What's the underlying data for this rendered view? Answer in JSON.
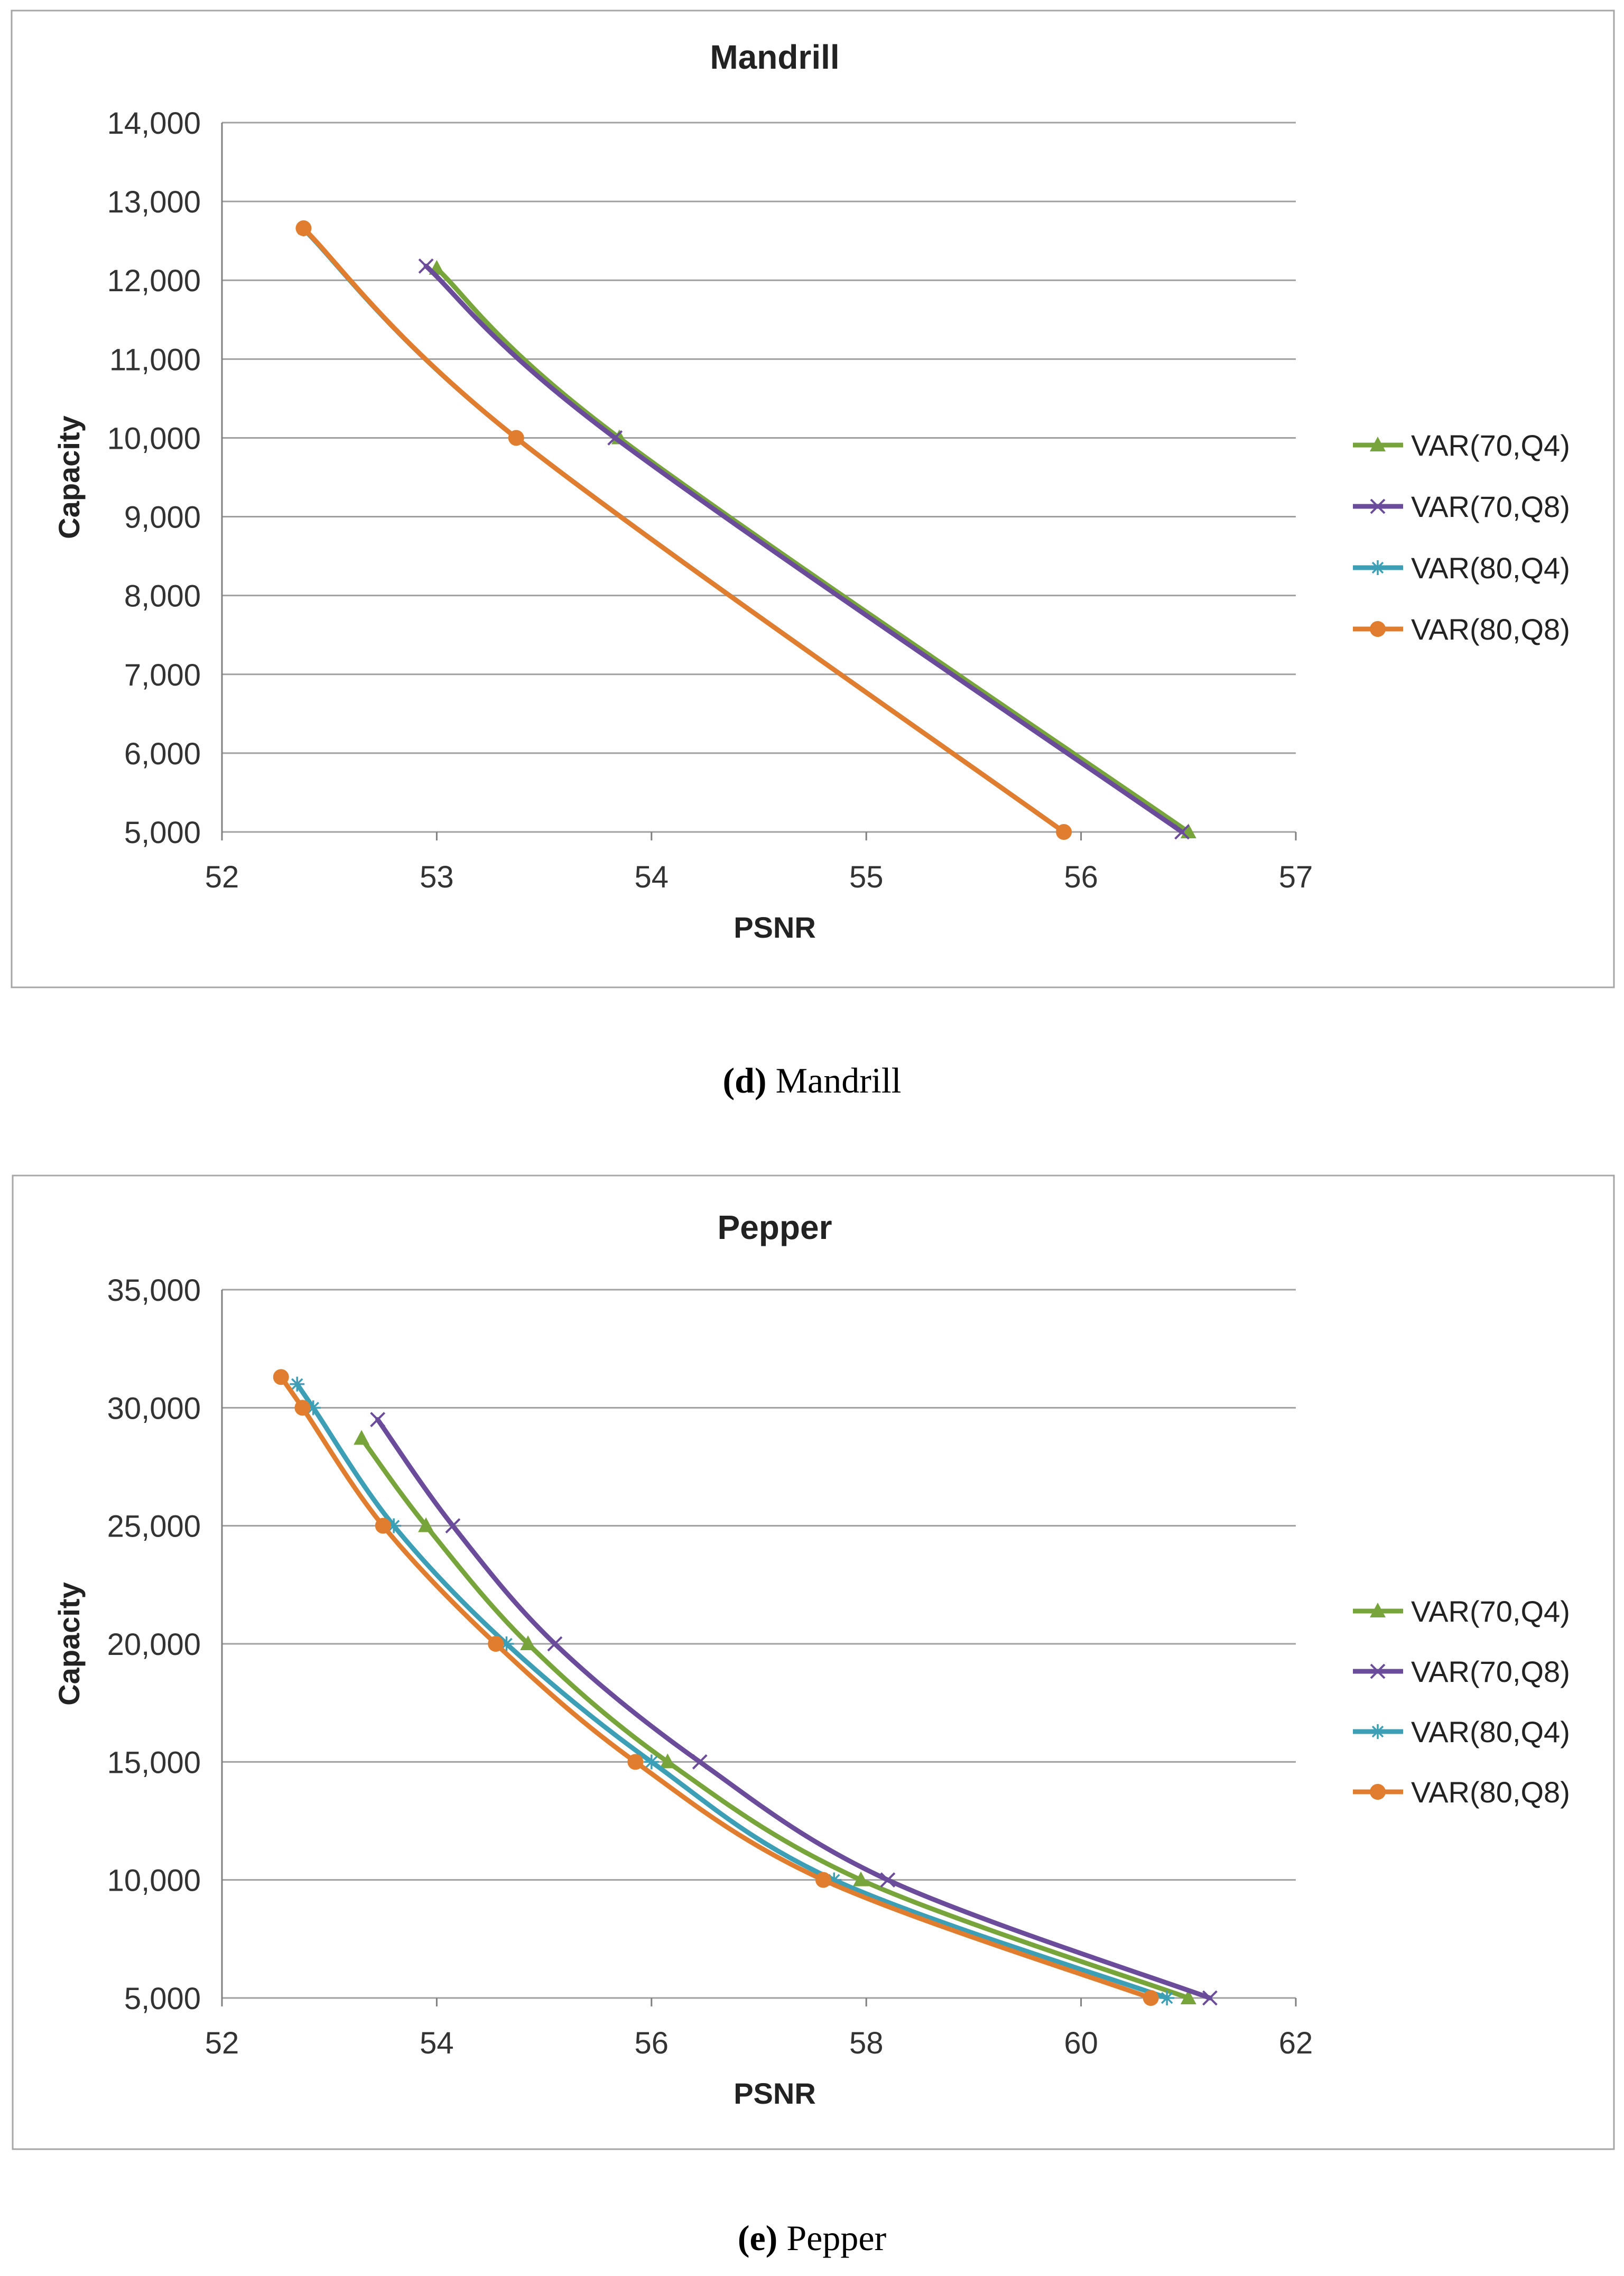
{
  "colors": {
    "VAR(70,Q4)": "#77a53b",
    "VAR(70,Q8)": "#6a4c9a",
    "VAR(80,Q4)": "#3d9fb5",
    "VAR(80,Q8)": "#e07d2e"
  },
  "chart_data": [
    {
      "type": "line",
      "title": "Mandrill",
      "xlabel": "PSNR",
      "ylabel": "Capacity",
      "xlim": [
        52,
        57
      ],
      "ylim": [
        5000,
        14000
      ],
      "xticks": [
        52,
        53,
        54,
        55,
        56,
        57
      ],
      "xtick_labels": [
        "52",
        "53",
        "54",
        "55",
        "56",
        "57"
      ],
      "yticks": [
        5000,
        6000,
        7000,
        8000,
        9000,
        10000,
        11000,
        12000,
        13000,
        14000
      ],
      "ytick_labels": [
        "5,000",
        "6,000",
        "7,000",
        "8,000",
        "9,000",
        "10,000",
        "11,000",
        "12,000",
        "13,000",
        "14,000"
      ],
      "grid": true,
      "legend": "right",
      "series": [
        {
          "name": "VAR(70,Q4)",
          "marker": "triangle",
          "x": [
            53.0,
            53.85,
            56.5
          ],
          "y": [
            12150,
            10000,
            5000
          ]
        },
        {
          "name": "VAR(70,Q8)",
          "marker": "x",
          "x": [
            52.95,
            53.83,
            56.47
          ],
          "y": [
            12180,
            10000,
            5000
          ]
        },
        {
          "name": "VAR(80,Q4)",
          "marker": "star",
          "x": [
            52.38,
            53.37,
            55.92
          ],
          "y": [
            12650,
            10000,
            5000
          ]
        },
        {
          "name": "VAR(80,Q8)",
          "marker": "circle",
          "x": [
            52.38,
            53.37,
            55.92
          ],
          "y": [
            12660,
            10000,
            5000
          ]
        }
      ]
    },
    {
      "type": "line",
      "title": "Pepper",
      "xlabel": "PSNR",
      "ylabel": "Capacity",
      "xlim": [
        52,
        62
      ],
      "ylim": [
        5000,
        35000
      ],
      "xticks": [
        52,
        54,
        56,
        58,
        60,
        62
      ],
      "xtick_labels": [
        "52",
        "54",
        "56",
        "58",
        "60",
        "62"
      ],
      "yticks": [
        5000,
        10000,
        15000,
        20000,
        25000,
        30000,
        35000
      ],
      "ytick_labels": [
        "5,000",
        "10,000",
        "15,000",
        "20,000",
        "25,000",
        "30,000",
        "35,000"
      ],
      "grid": true,
      "legend": "right",
      "series": [
        {
          "name": "VAR(70,Q4)",
          "marker": "triangle",
          "x": [
            53.3,
            53.9,
            54.85,
            56.15,
            57.95,
            61.0
          ],
          "y": [
            28700,
            25000,
            20000,
            15000,
            10000,
            5000
          ]
        },
        {
          "name": "VAR(70,Q8)",
          "marker": "x",
          "x": [
            53.45,
            54.15,
            55.1,
            56.45,
            58.2,
            61.2
          ],
          "y": [
            29500,
            25000,
            20000,
            15000,
            10000,
            5000
          ]
        },
        {
          "name": "VAR(80,Q4)",
          "marker": "star",
          "x": [
            52.7,
            52.85,
            53.6,
            54.65,
            56.0,
            57.7,
            60.8
          ],
          "y": [
            31000,
            30000,
            25000,
            20000,
            15000,
            10000,
            5000
          ]
        },
        {
          "name": "VAR(80,Q8)",
          "marker": "circle",
          "x": [
            52.55,
            52.75,
            53.5,
            54.55,
            55.85,
            57.6,
            60.65
          ],
          "y": [
            31300,
            30000,
            25000,
            20000,
            15000,
            10000,
            5000
          ]
        }
      ]
    }
  ],
  "captions": [
    {
      "label": "(d)",
      "text": " Mandrill"
    },
    {
      "label": "(e)",
      "text": " Pepper"
    }
  ]
}
